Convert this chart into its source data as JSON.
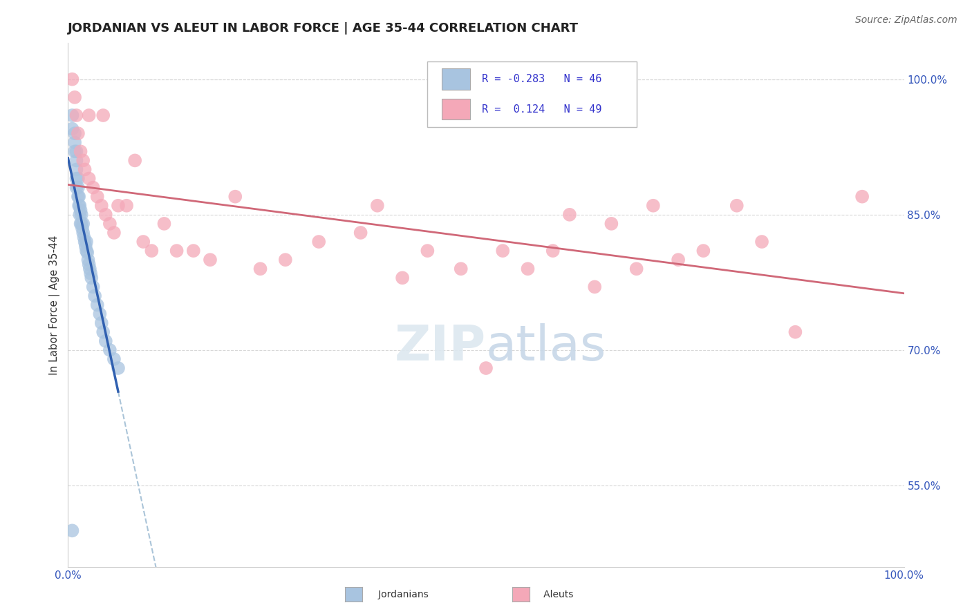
{
  "title": "JORDANIAN VS ALEUT IN LABOR FORCE | AGE 35-44 CORRELATION CHART",
  "source": "Source: ZipAtlas.com",
  "ylabel": "In Labor Force | Age 35-44",
  "xlim": [
    0.0,
    1.0
  ],
  "ylim": [
    0.46,
    1.04
  ],
  "yticks": [
    0.55,
    0.7,
    0.85,
    1.0
  ],
  "ytick_labels": [
    "55.0%",
    "70.0%",
    "85.0%",
    "100.0%"
  ],
  "xticks": [
    0.0,
    1.0
  ],
  "xtick_labels": [
    "0.0%",
    "100.0%"
  ],
  "jordanian_R": -0.283,
  "jordanian_N": 46,
  "aleut_R": 0.124,
  "aleut_N": 49,
  "jordanian_color": "#a8c4e0",
  "aleut_color": "#f4a8b8",
  "jordanian_line_color": "#3060b0",
  "aleut_line_color": "#d06878",
  "dashed_line_color": "#aac4d8",
  "background_color": "#ffffff",
  "grid_color": "#d8d8d8",
  "jordanian_x": [
    0.005,
    0.005,
    0.008,
    0.008,
    0.008,
    0.01,
    0.01,
    0.01,
    0.01,
    0.01,
    0.012,
    0.012,
    0.012,
    0.013,
    0.013,
    0.014,
    0.014,
    0.015,
    0.015,
    0.016,
    0.016,
    0.017,
    0.018,
    0.018,
    0.019,
    0.02,
    0.021,
    0.022,
    0.022,
    0.023,
    0.024,
    0.025,
    0.026,
    0.027,
    0.028,
    0.03,
    0.032,
    0.035,
    0.038,
    0.04,
    0.042,
    0.045,
    0.05,
    0.055,
    0.06,
    0.005
  ],
  "jordanian_y": [
    0.945,
    0.96,
    0.92,
    0.93,
    0.94,
    0.88,
    0.89,
    0.9,
    0.91,
    0.92,
    0.87,
    0.88,
    0.89,
    0.86,
    0.87,
    0.85,
    0.86,
    0.84,
    0.855,
    0.84,
    0.85,
    0.835,
    0.83,
    0.84,
    0.825,
    0.82,
    0.815,
    0.81,
    0.82,
    0.808,
    0.8,
    0.795,
    0.79,
    0.785,
    0.78,
    0.77,
    0.76,
    0.75,
    0.74,
    0.73,
    0.72,
    0.71,
    0.7,
    0.69,
    0.68,
    0.5
  ],
  "aleut_x": [
    0.005,
    0.008,
    0.01,
    0.012,
    0.015,
    0.018,
    0.02,
    0.025,
    0.025,
    0.03,
    0.035,
    0.04,
    0.042,
    0.045,
    0.05,
    0.055,
    0.06,
    0.07,
    0.08,
    0.09,
    0.1,
    0.115,
    0.13,
    0.15,
    0.17,
    0.2,
    0.23,
    0.26,
    0.3,
    0.35,
    0.37,
    0.4,
    0.43,
    0.47,
    0.5,
    0.52,
    0.55,
    0.58,
    0.6,
    0.63,
    0.65,
    0.68,
    0.7,
    0.73,
    0.76,
    0.8,
    0.83,
    0.87,
    0.95
  ],
  "aleut_y": [
    1.0,
    0.98,
    0.96,
    0.94,
    0.92,
    0.91,
    0.9,
    0.96,
    0.89,
    0.88,
    0.87,
    0.86,
    0.96,
    0.85,
    0.84,
    0.83,
    0.86,
    0.86,
    0.91,
    0.82,
    0.81,
    0.84,
    0.81,
    0.81,
    0.8,
    0.87,
    0.79,
    0.8,
    0.82,
    0.83,
    0.86,
    0.78,
    0.81,
    0.79,
    0.68,
    0.81,
    0.79,
    0.81,
    0.85,
    0.77,
    0.84,
    0.79,
    0.86,
    0.8,
    0.81,
    0.86,
    0.82,
    0.72,
    0.87
  ],
  "title_fontsize": 13,
  "source_fontsize": 10,
  "axis_label_fontsize": 11,
  "tick_fontsize": 11,
  "legend_fontsize": 11
}
